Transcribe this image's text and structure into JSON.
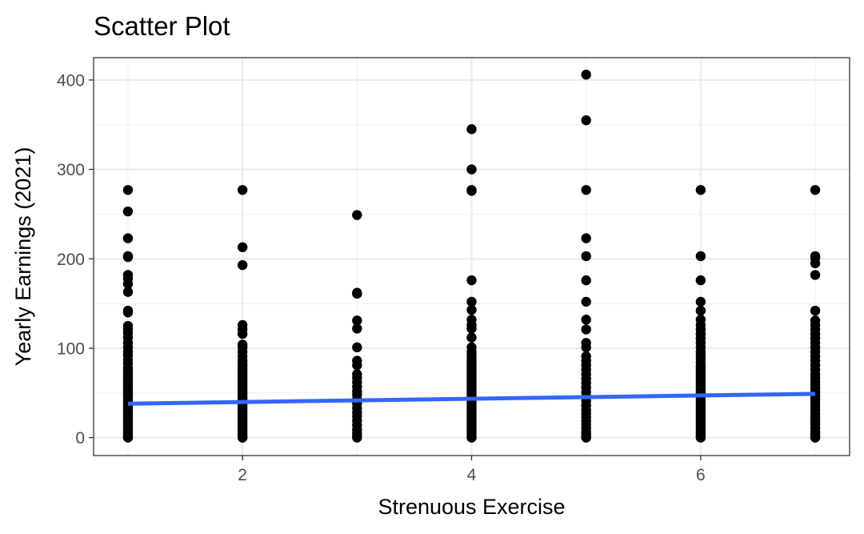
{
  "chart_data": {
    "type": "scatter",
    "title": "Scatter Plot",
    "xlabel": "Strenuous Exercise",
    "ylabel": "Yearly Earnings (2021)",
    "xlim": [
      0.7,
      7.3
    ],
    "ylim": [
      -20,
      425
    ],
    "x_ticks": [
      2,
      4,
      6
    ],
    "x_tick_labels": [
      "2",
      "4",
      "6"
    ],
    "y_ticks": [
      0,
      100,
      200,
      300,
      400
    ],
    "y_tick_labels": [
      "0",
      "100",
      "200",
      "300",
      "400"
    ],
    "grid": true,
    "legend": "none",
    "point_color": "#000000",
    "trend_color": "#3366ff",
    "trend_line": {
      "x": [
        1,
        7
      ],
      "y": [
        38,
        49
      ]
    },
    "points": [
      {
        "x": 1,
        "ys": [
          277,
          253,
          223,
          203,
          202,
          182,
          178,
          172,
          163,
          142,
          140,
          125,
          121,
          117,
          112,
          106,
          101,
          96,
          92,
          87,
          83,
          78,
          75,
          71,
          68,
          65,
          62,
          59,
          56,
          53,
          50,
          47,
          44,
          41,
          38,
          35,
          32,
          29,
          26,
          23,
          20,
          17,
          14,
          11,
          8,
          5,
          2,
          0
        ]
      },
      {
        "x": 2,
        "ys": [
          277,
          213,
          193,
          126,
          121,
          116,
          104,
          101,
          96,
          91,
          86,
          82,
          79,
          76,
          73,
          70,
          67,
          64,
          61,
          58,
          55,
          52,
          49,
          46,
          43,
          40,
          37,
          34,
          31,
          28,
          25,
          22,
          19,
          16,
          13,
          10,
          7,
          4,
          1,
          0
        ]
      },
      {
        "x": 3,
        "ys": [
          249,
          162,
          161,
          131,
          122,
          101,
          86,
          81,
          71,
          67,
          62,
          57,
          52,
          48,
          43,
          38,
          33,
          28,
          24,
          19,
          14,
          9,
          5,
          2,
          0
        ]
      },
      {
        "x": 4,
        "ys": [
          345,
          300,
          277,
          276,
          176,
          152,
          143,
          132,
          126,
          122,
          112,
          101,
          96,
          92,
          88,
          85,
          82,
          79,
          76,
          73,
          70,
          67,
          64,
          61,
          58,
          55,
          52,
          49,
          46,
          43,
          40,
          37,
          34,
          31,
          28,
          25,
          22,
          19,
          16,
          13,
          10,
          7,
          4,
          1,
          0
        ]
      },
      {
        "x": 5,
        "ys": [
          406,
          355,
          277,
          223,
          203,
          176,
          152,
          132,
          121,
          106,
          101,
          91,
          86,
          81,
          76,
          71,
          66,
          61,
          56,
          51,
          46,
          41,
          36,
          31,
          27,
          23,
          19,
          15,
          11,
          7,
          4,
          1,
          0
        ]
      },
      {
        "x": 6,
        "ys": [
          277,
          203,
          176,
          152,
          142,
          132,
          126,
          121,
          116,
          111,
          106,
          101,
          96,
          92,
          88,
          84,
          80,
          77,
          74,
          71,
          68,
          65,
          62,
          59,
          56,
          53,
          50,
          47,
          44,
          41,
          38,
          35,
          32,
          29,
          26,
          23,
          20,
          17,
          14,
          11,
          8,
          5,
          2,
          0
        ]
      },
      {
        "x": 7,
        "ys": [
          277,
          203,
          201,
          195,
          182,
          142,
          131,
          126,
          121,
          116,
          111,
          106,
          101,
          96,
          91,
          86,
          81,
          76,
          71,
          67,
          63,
          59,
          55,
          51,
          47,
          43,
          39,
          35,
          31,
          27,
          23,
          19,
          15,
          11,
          7,
          4,
          1,
          0
        ]
      }
    ]
  }
}
